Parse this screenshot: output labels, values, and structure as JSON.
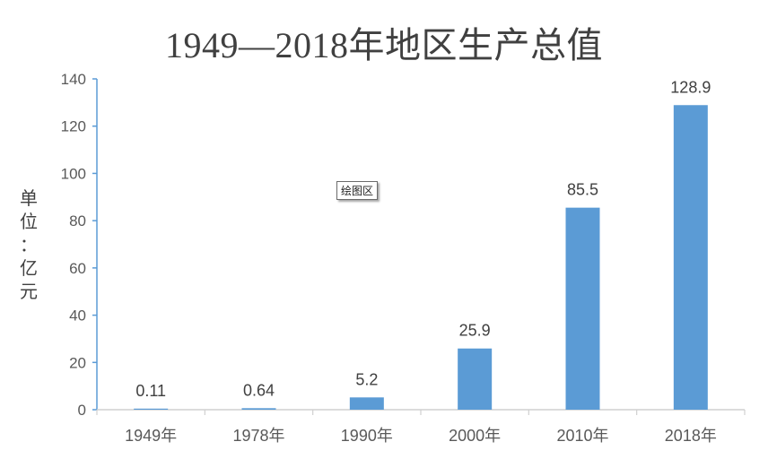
{
  "chart_data": {
    "type": "bar",
    "title": "1949—2018年地区生产总值",
    "ylabel": "单位：亿元",
    "xlabel": "",
    "categories": [
      "1949年",
      "1978年",
      "1990年",
      "2000年",
      "2010年",
      "2018年"
    ],
    "values": [
      0.11,
      0.64,
      5.2,
      25.9,
      85.5,
      128.9
    ],
    "data_labels": [
      "0.11",
      "0.64",
      "5.2",
      "25.9",
      "85.5",
      "128.9"
    ],
    "ylim": [
      0,
      140
    ],
    "yticks": [
      0,
      20,
      40,
      60,
      80,
      100,
      120,
      140
    ],
    "grid": false,
    "legend": "none",
    "bar_color": "#5b9bd5",
    "axis_color": "#5b9bd5"
  },
  "tooltip": {
    "text": "绘图区"
  }
}
